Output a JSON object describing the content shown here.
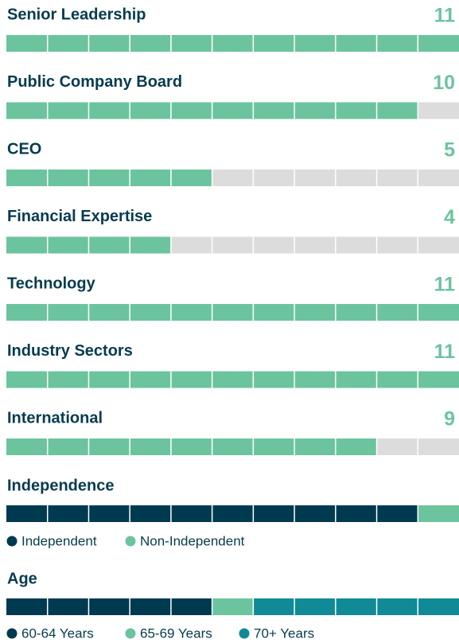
{
  "chart_data": {
    "type": "segmented-bar",
    "skills": [
      {
        "label": "Senior Leadership",
        "value": 11
      },
      {
        "label": "Public Company Board",
        "value": 10
      },
      {
        "label": "CEO",
        "value": 5
      },
      {
        "label": "Financial Expertise",
        "value": 4
      },
      {
        "label": "Technology",
        "value": 11
      },
      {
        "label": "Industry Sectors",
        "value": 11
      },
      {
        "label": "International",
        "value": 9
      }
    ],
    "skill_color": "#6cc49e",
    "empty_color": "#dcdcdc",
    "independence": {
      "title": "Independence",
      "series": [
        {
          "name": "Independent",
          "color": "#003a50",
          "value": 10
        },
        {
          "name": "Non-Independent",
          "color": "#6cc49e",
          "value": 1
        }
      ]
    },
    "age": {
      "title": "Age",
      "series": [
        {
          "name": "60-64 Years",
          "color": "#003a50",
          "value": 5
        },
        {
          "name": "65-69 Years",
          "color": "#6cc49e",
          "value": 1
        },
        {
          "name": "70+ Years",
          "color": "#0f8a96",
          "value": 5
        }
      ]
    }
  }
}
